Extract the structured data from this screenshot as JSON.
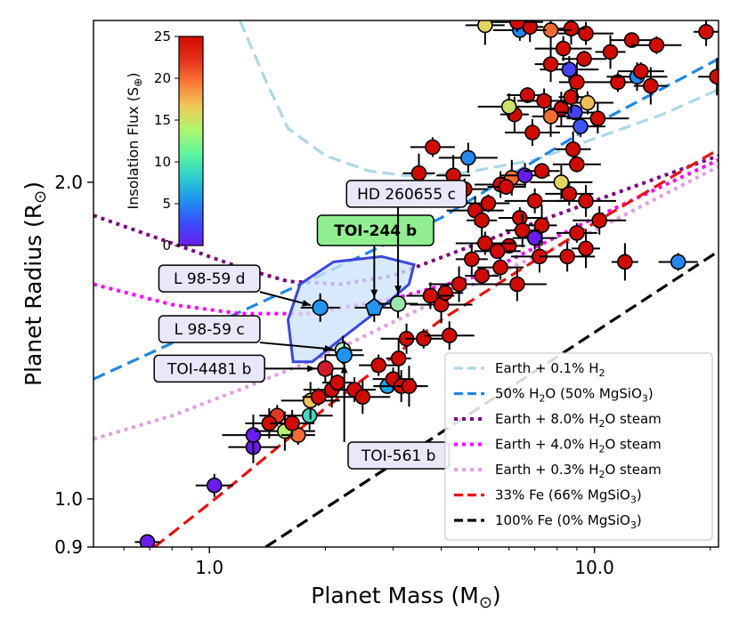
{
  "chart_data": {
    "type": "scatter",
    "xlabel_text": "Planet Mass (M",
    "ylabel_text": "Planet Radius (R",
    "x_scale": "log",
    "y_scale": "log",
    "xlim": [
      0.5,
      21
    ],
    "ylim": [
      0.9,
      2.85
    ],
    "x_ticks": [
      {
        "value": 1.0,
        "label": "1.0"
      },
      {
        "value": 10.0,
        "label": "10.0"
      }
    ],
    "y_ticks": [
      {
        "value": 0.9,
        "label": "0.9"
      },
      {
        "value": 1.0,
        "label": "1.0"
      },
      {
        "value": 2.0,
        "label": "2.0"
      }
    ],
    "colorbar": {
      "label": "Insolation Flux (S",
      "min": 0,
      "max": 25,
      "ticks": [
        "0",
        "5",
        "10",
        "15",
        "20",
        "25"
      ],
      "colors": [
        "#6a1cf0",
        "#3a4ffb",
        "#1f96f0",
        "#2bd2c9",
        "#62f79c",
        "#b1f56c",
        "#f0c958",
        "#fa7a36",
        "#e4301a",
        "#d20a00"
      ]
    },
    "legend": {
      "placement": "lower-right",
      "entries": [
        {
          "label": "Earth + 0.1% H",
          "sub": "2",
          "rest": "",
          "color": "#add8e6",
          "dash": "dash"
        },
        {
          "label": "50% H",
          "sub": "2",
          "rest": "O (50% MgSiO",
          "sub2": "3",
          "rest2": ")",
          "color": "#1e88e5",
          "dash": "dash"
        },
        {
          "label": "Earth + 8.0% H",
          "sub": "2",
          "rest": "O steam",
          "color": "#800080",
          "dash": "dot"
        },
        {
          "label": "Earth + 4.0% H",
          "sub": "2",
          "rest": "O steam",
          "color": "#ff00ff",
          "dash": "dot"
        },
        {
          "label": "Earth + 0.3% H",
          "sub": "2",
          "rest": "O steam",
          "color": "#dda0dd",
          "dash": "dot"
        },
        {
          "label": "33% Fe (66% MgSiO",
          "sub": "3",
          "rest": ")",
          "color": "#ee1111",
          "dash": "dash"
        },
        {
          "label": "100% Fe (0% MgSiO",
          "sub": "3",
          "rest": ")",
          "color": "#000000",
          "dash": "dash"
        }
      ]
    },
    "curves": [
      {
        "name": "Earth + 0.1% H2",
        "color": "#add8e6",
        "dash": "dash",
        "points": [
          [
            1.2,
            2.85
          ],
          [
            1.4,
            2.5
          ],
          [
            1.6,
            2.25
          ],
          [
            2.0,
            2.12
          ],
          [
            2.6,
            2.05
          ],
          [
            3.2,
            2.03
          ],
          [
            4.5,
            2.04
          ],
          [
            7.0,
            2.1
          ],
          [
            10.0,
            2.2
          ],
          [
            15.0,
            2.32
          ],
          [
            21.0,
            2.45
          ]
        ]
      },
      {
        "name": "50% H2O (50% MgSiO3)",
        "color": "#1e88e5",
        "dash": "dash",
        "points": [
          [
            0.5,
            1.3
          ],
          [
            1.0,
            1.46
          ],
          [
            2.0,
            1.64
          ],
          [
            4.0,
            1.85
          ],
          [
            10.0,
            2.27
          ],
          [
            21.0,
            2.62
          ]
        ]
      },
      {
        "name": "Earth + 8.0% H2O steam",
        "color": "#800080",
        "dash": "dot",
        "points": [
          [
            0.5,
            1.86
          ],
          [
            0.8,
            1.75
          ],
          [
            1.2,
            1.66
          ],
          [
            1.6,
            1.61
          ],
          [
            2.2,
            1.6
          ],
          [
            3.0,
            1.63
          ],
          [
            5.0,
            1.75
          ],
          [
            10.0,
            1.92
          ],
          [
            21.0,
            2.12
          ]
        ]
      },
      {
        "name": "Earth + 4.0% H2O steam",
        "color": "#ff00ff",
        "dash": "dot",
        "points": [
          [
            0.5,
            1.6
          ],
          [
            0.8,
            1.53
          ],
          [
            1.2,
            1.5
          ],
          [
            1.8,
            1.5
          ],
          [
            3.0,
            1.55
          ],
          [
            5.0,
            1.63
          ],
          [
            10.0,
            1.85
          ],
          [
            21.0,
            2.1
          ]
        ]
      },
      {
        "name": "Earth + 0.3% H2O steam",
        "color": "#dda0dd",
        "dash": "dot",
        "points": [
          [
            0.5,
            1.14
          ],
          [
            0.8,
            1.2
          ],
          [
            1.2,
            1.27
          ],
          [
            2.0,
            1.37
          ],
          [
            4.0,
            1.55
          ],
          [
            10.0,
            1.8
          ],
          [
            21.0,
            2.07
          ]
        ]
      },
      {
        "name": "33% Fe (66% MgSiO3)",
        "color": "#ee1111",
        "dash": "dash",
        "points": [
          [
            0.72,
            0.9
          ],
          [
            1.0,
            0.99
          ],
          [
            2.0,
            1.22
          ],
          [
            4.0,
            1.48
          ],
          [
            10.0,
            1.83
          ],
          [
            21.0,
            2.15
          ]
        ]
      },
      {
        "name": "100% Fe (0% MgSiO3)",
        "color": "#000000",
        "dash": "dash",
        "points": [
          [
            1.4,
            0.9
          ],
          [
            2.0,
            0.98
          ],
          [
            5.0,
            1.22
          ],
          [
            10.0,
            1.44
          ],
          [
            21.0,
            1.72
          ]
        ]
      }
    ],
    "highlight_region": {
      "points": [
        [
          1.65,
          1.35
        ],
        [
          1.6,
          1.48
        ],
        [
          1.72,
          1.6
        ],
        [
          2.1,
          1.68
        ],
        [
          2.8,
          1.7
        ],
        [
          3.4,
          1.67
        ],
        [
          3.3,
          1.6
        ],
        [
          2.8,
          1.52
        ],
        [
          2.2,
          1.42
        ],
        [
          1.85,
          1.35
        ]
      ]
    },
    "highlighted_planets": [
      {
        "name": "L 98-59 d",
        "label": "L 98-59 d",
        "x": 1.94,
        "y": 1.52,
        "color": "#1f96f0",
        "marker": "circle",
        "label_x": 1.0,
        "label_y": 1.62,
        "bold": false
      },
      {
        "name": "TOI-244 b",
        "label": "TOI-244 b",
        "x": 2.68,
        "y": 1.52,
        "color": "#1f96f0",
        "marker": "pentagon",
        "label_x": 2.7,
        "label_y": 1.8,
        "bold": true
      },
      {
        "name": "HD 260655 c",
        "label": "HD 260655 c",
        "x": 3.09,
        "y": 1.533,
        "color": "#9be8a6",
        "marker": "circle",
        "label_x": 3.25,
        "label_y": 1.95,
        "bold": false
      },
      {
        "name": "L 98-59 c",
        "label": "L 98-59 c",
        "x": 2.22,
        "y": 1.385,
        "color": "#b6f0c9",
        "marker": "circle",
        "label_x": 1.0,
        "label_y": 1.45,
        "bold": false
      },
      {
        "name": "TOI-4481 b",
        "label": "TOI-4481 b",
        "x": 2.0,
        "y": 1.33,
        "color": "#d21a2a",
        "marker": "circle",
        "label_x": 1.0,
        "label_y": 1.33,
        "bold": false
      },
      {
        "name": "TOI-561 b",
        "label": "TOI-561 b",
        "x": 2.24,
        "y": 1.37,
        "color": "#1f96f0",
        "marker": "circle",
        "label_x": 3.1,
        "label_y": 1.1,
        "bold": false
      }
    ],
    "points": [
      {
        "x": 0.69,
        "y": 0.91,
        "c": 0
      },
      {
        "x": 1.03,
        "y": 1.03,
        "c": 0
      },
      {
        "x": 1.3,
        "y": 1.12,
        "c": 0
      },
      {
        "x": 1.3,
        "y": 1.15,
        "c": 0
      },
      {
        "x": 1.5,
        "y": 1.2,
        "c": 22
      },
      {
        "x": 1.43,
        "y": 1.18,
        "c": 25
      },
      {
        "x": 1.57,
        "y": 1.16,
        "c": 14
      },
      {
        "x": 1.7,
        "y": 1.15,
        "c": 20
      },
      {
        "x": 1.82,
        "y": 1.2,
        "c": 9
      },
      {
        "x": 1.83,
        "y": 1.24,
        "c": 17
      },
      {
        "x": 1.92,
        "y": 1.25,
        "c": 25
      },
      {
        "x": 1.64,
        "y": 1.18,
        "c": 25
      },
      {
        "x": 2.08,
        "y": 1.27,
        "c": 25
      },
      {
        "x": 2.15,
        "y": 1.29,
        "c": 25
      },
      {
        "x": 2.38,
        "y": 1.27,
        "c": 25
      },
      {
        "x": 2.5,
        "y": 1.25,
        "c": 25
      },
      {
        "x": 2.9,
        "y": 1.28,
        "c": 6
      },
      {
        "x": 3.0,
        "y": 1.3,
        "c": 25
      },
      {
        "x": 3.15,
        "y": 1.28,
        "c": 25
      },
      {
        "x": 3.3,
        "y": 1.28,
        "c": 25
      },
      {
        "x": 2.75,
        "y": 1.34,
        "c": 25
      },
      {
        "x": 3.25,
        "y": 1.42,
        "c": 25
      },
      {
        "x": 3.1,
        "y": 1.36,
        "c": 25
      },
      {
        "x": 3.6,
        "y": 1.42,
        "c": 25
      },
      {
        "x": 4.2,
        "y": 1.43,
        "c": 25
      },
      {
        "x": 4.0,
        "y": 1.53,
        "c": 25
      },
      {
        "x": 4.1,
        "y": 1.57,
        "c": 25
      },
      {
        "x": 3.75,
        "y": 1.56,
        "c": 25
      },
      {
        "x": 4.45,
        "y": 1.6,
        "c": 25
      },
      {
        "x": 5.1,
        "y": 1.63,
        "c": 25
      },
      {
        "x": 5.7,
        "y": 1.66,
        "c": 25
      },
      {
        "x": 6.3,
        "y": 1.6,
        "c": 25
      },
      {
        "x": 6.0,
        "y": 1.74,
        "c": 25
      },
      {
        "x": 7.0,
        "y": 1.77,
        "c": 0
      },
      {
        "x": 7.2,
        "y": 1.7,
        "c": 25
      },
      {
        "x": 7.3,
        "y": 1.82,
        "c": 25
      },
      {
        "x": 6.4,
        "y": 1.85,
        "c": 25
      },
      {
        "x": 8.5,
        "y": 1.7,
        "c": 25
      },
      {
        "x": 9.5,
        "y": 1.73,
        "c": 25
      },
      {
        "x": 9.0,
        "y": 1.79,
        "c": 25
      },
      {
        "x": 10.3,
        "y": 1.84,
        "c": 25
      },
      {
        "x": 12.0,
        "y": 1.68,
        "c": 25
      },
      {
        "x": 16.5,
        "y": 1.68,
        "c": 5
      },
      {
        "x": 5.7,
        "y": 1.99,
        "c": 25
      },
      {
        "x": 6.1,
        "y": 2.02,
        "c": 20
      },
      {
        "x": 5.9,
        "y": 1.98,
        "c": 25
      },
      {
        "x": 6.6,
        "y": 2.03,
        "c": 0
      },
      {
        "x": 8.2,
        "y": 2.0,
        "c": 16
      },
      {
        "x": 7.3,
        "y": 2.05,
        "c": 25
      },
      {
        "x": 8.6,
        "y": 1.95,
        "c": 25
      },
      {
        "x": 9.5,
        "y": 1.92,
        "c": 25
      },
      {
        "x": 4.3,
        "y": 2.03,
        "c": 25
      },
      {
        "x": 4.6,
        "y": 1.97,
        "c": 25
      },
      {
        "x": 4.7,
        "y": 2.11,
        "c": 5
      },
      {
        "x": 3.5,
        "y": 2.04,
        "c": 25
      },
      {
        "x": 3.8,
        "y": 2.16,
        "c": 25
      },
      {
        "x": 4.9,
        "y": 1.88,
        "c": 25
      },
      {
        "x": 5.1,
        "y": 1.84,
        "c": 25
      },
      {
        "x": 5.3,
        "y": 1.91,
        "c": 25
      },
      {
        "x": 6.9,
        "y": 2.23,
        "c": 25
      },
      {
        "x": 6.2,
        "y": 2.32,
        "c": 25
      },
      {
        "x": 6.7,
        "y": 2.42,
        "c": 25
      },
      {
        "x": 7.4,
        "y": 2.39,
        "c": 25
      },
      {
        "x": 8.2,
        "y": 2.35,
        "c": 25
      },
      {
        "x": 8.9,
        "y": 2.33,
        "c": 2
      },
      {
        "x": 9.6,
        "y": 2.38,
        "c": 17
      },
      {
        "x": 8.7,
        "y": 2.41,
        "c": 25
      },
      {
        "x": 7.7,
        "y": 2.31,
        "c": 20
      },
      {
        "x": 9.2,
        "y": 2.26,
        "c": 3
      },
      {
        "x": 10.2,
        "y": 2.3,
        "c": 25
      },
      {
        "x": 9.0,
        "y": 2.49,
        "c": 25
      },
      {
        "x": 11.5,
        "y": 2.49,
        "c": 25
      },
      {
        "x": 12.9,
        "y": 2.52,
        "c": 5
      },
      {
        "x": 14.0,
        "y": 2.47,
        "c": 25
      },
      {
        "x": 13.2,
        "y": 2.55,
        "c": 25
      },
      {
        "x": 8.6,
        "y": 2.56,
        "c": 2
      },
      {
        "x": 7.7,
        "y": 2.59,
        "c": 25
      },
      {
        "x": 9.4,
        "y": 2.62,
        "c": 25
      },
      {
        "x": 8.3,
        "y": 2.68,
        "c": 25
      },
      {
        "x": 11.0,
        "y": 2.66,
        "c": 25
      },
      {
        "x": 12.5,
        "y": 2.73,
        "c": 25
      },
      {
        "x": 9.5,
        "y": 2.77,
        "c": 25
      },
      {
        "x": 8.7,
        "y": 2.8,
        "c": 25
      },
      {
        "x": 7.7,
        "y": 2.79,
        "c": 20
      },
      {
        "x": 6.4,
        "y": 2.79,
        "c": 5
      },
      {
        "x": 6.8,
        "y": 2.81,
        "c": 25
      },
      {
        "x": 5.2,
        "y": 2.82,
        "c": 16
      },
      {
        "x": 6.3,
        "y": 2.84,
        "c": 25
      },
      {
        "x": 19.5,
        "y": 2.78,
        "c": 25
      },
      {
        "x": 20.8,
        "y": 2.52,
        "c": 25
      },
      {
        "x": 14.5,
        "y": 2.7,
        "c": 25
      },
      {
        "x": 6.0,
        "y": 2.36,
        "c": 15
      },
      {
        "x": 8.8,
        "y": 2.15,
        "c": 25
      },
      {
        "x": 9.0,
        "y": 2.08,
        "c": 25
      },
      {
        "x": 7.0,
        "y": 1.92,
        "c": 25
      },
      {
        "x": 6.5,
        "y": 1.8,
        "c": 25
      },
      {
        "x": 5.6,
        "y": 1.72,
        "c": 25
      },
      {
        "x": 5.2,
        "y": 1.75,
        "c": 25
      },
      {
        "x": 4.8,
        "y": 1.69,
        "c": 25
      }
    ]
  }
}
